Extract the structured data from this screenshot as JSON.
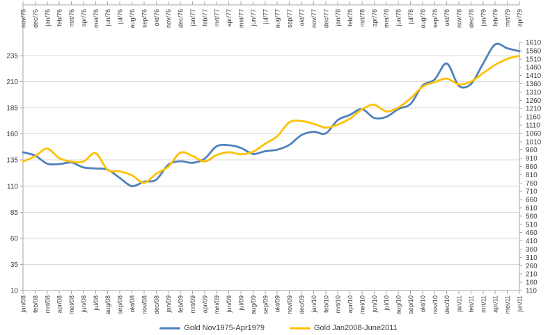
{
  "chart_data": {
    "type": "line",
    "title": "",
    "legend_position": "bottom",
    "grid": "horizontal",
    "x_axis_top": {
      "position": "top",
      "label_rotation_deg": -90,
      "categories": [
        "nov/75",
        "dec/75",
        "jan/76",
        "feb/76",
        "mrt/76",
        "apr/76",
        "mei/76",
        "jun/76",
        "jul/76",
        "aug/76",
        "sep/76",
        "okt/76",
        "nov/76",
        "dec/76",
        "jan/77",
        "feb/77",
        "mrt/77",
        "apr/77",
        "mei/77",
        "jun/77",
        "jul/77",
        "aug/77",
        "sep/77",
        "okt/77",
        "nov/77",
        "dec/77",
        "jan/78",
        "feb/78",
        "mrt/78",
        "apr/78",
        "mei/78",
        "jun/78",
        "jul/78",
        "aug/78",
        "sep/78",
        "okt/78",
        "nov/78",
        "dec/78",
        "jan/79",
        "feb/79",
        "mrt/79",
        "apr/79"
      ]
    },
    "x_axis_bottom": {
      "position": "bottom",
      "label_rotation_deg": -90,
      "categories": [
        "jan/08",
        "feb/08",
        "mrt/08",
        "apr/08",
        "mei/08",
        "jun/08",
        "jul/08",
        "aug/08",
        "sep/08",
        "okt/08",
        "nov/08",
        "dec/08",
        "jan/09",
        "feb/09",
        "mrt/09",
        "apr/09",
        "mei/09",
        "jun/09",
        "jul/09",
        "aug/09",
        "sep/09",
        "okt/09",
        "nov/09",
        "dec/09",
        "jan/10",
        "feb/10",
        "mrt/10",
        "apr/10",
        "mei/10",
        "jun/10",
        "jul/10",
        "aug/10",
        "sep/10",
        "okt/10",
        "nov/10",
        "dec/10",
        "jan/11",
        "feb/11",
        "mrt/11",
        "apr/11",
        "mei/11",
        "jun/11"
      ]
    },
    "y_axis_left": {
      "min": 10,
      "max": 235,
      "step": 25,
      "tick_labels": [
        "10",
        "35",
        "60",
        "85",
        "110",
        "135",
        "160",
        "185",
        "210",
        "235"
      ]
    },
    "y_axis_right": {
      "min": 110,
      "max": 1610,
      "step": 50,
      "tick_labels": [
        "110",
        "160",
        "210",
        "260",
        "310",
        "360",
        "410",
        "460",
        "510",
        "560",
        "610",
        "660",
        "710",
        "760",
        "810",
        "860",
        "910",
        "960",
        "1010",
        "1060",
        "1110",
        "1160",
        "1210",
        "1260",
        "1310",
        "1360",
        "1410",
        "1460",
        "1510",
        "1560",
        "1610"
      ]
    },
    "series": [
      {
        "name": "Gold Nov1975-Apr1979",
        "color": "#4F81BD",
        "axis": "left",
        "x_labels": "top",
        "smooth": true,
        "values": [
          142.4,
          139.3,
          131.5,
          131.1,
          132.6,
          127.9,
          126.9,
          125.7,
          117.8,
          110.0,
          114.2,
          116.1,
          130.5,
          133.8,
          132.3,
          136.3,
          148.2,
          149.2,
          146.6,
          140.8,
          143.4,
          144.9,
          149.5,
          158.9,
          162.1,
          160.5,
          173.2,
          178.2,
          183.7,
          175.3,
          176.3,
          183.8,
          188.7,
          206.3,
          212.1,
          227.4,
          206.1,
          207.8,
          227.3,
          245.7,
          242.0,
          239.2
        ]
      },
      {
        "name": "Gold Jan2008-June2011",
        "color": "#FFC000",
        "axis": "right",
        "x_labels": "bottom",
        "smooth": true,
        "values": [
          890,
          922,
          968,
          910,
          889,
          890,
          940,
          839,
          830,
          807,
          761,
          816,
          859,
          943,
          924,
          890,
          929,
          946,
          934,
          949,
          997,
          1043,
          1127,
          1135,
          1118,
          1095,
          1113,
          1149,
          1205,
          1233,
          1193,
          1216,
          1271,
          1342,
          1370,
          1391,
          1356,
          1373,
          1424,
          1474,
          1510,
          1529
        ]
      }
    ],
    "colors": {
      "gridline": "#d9d9d9",
      "axis_line": "#a6a6a6",
      "tick_text": "#3f3f3f",
      "background": "#ffffff"
    }
  }
}
